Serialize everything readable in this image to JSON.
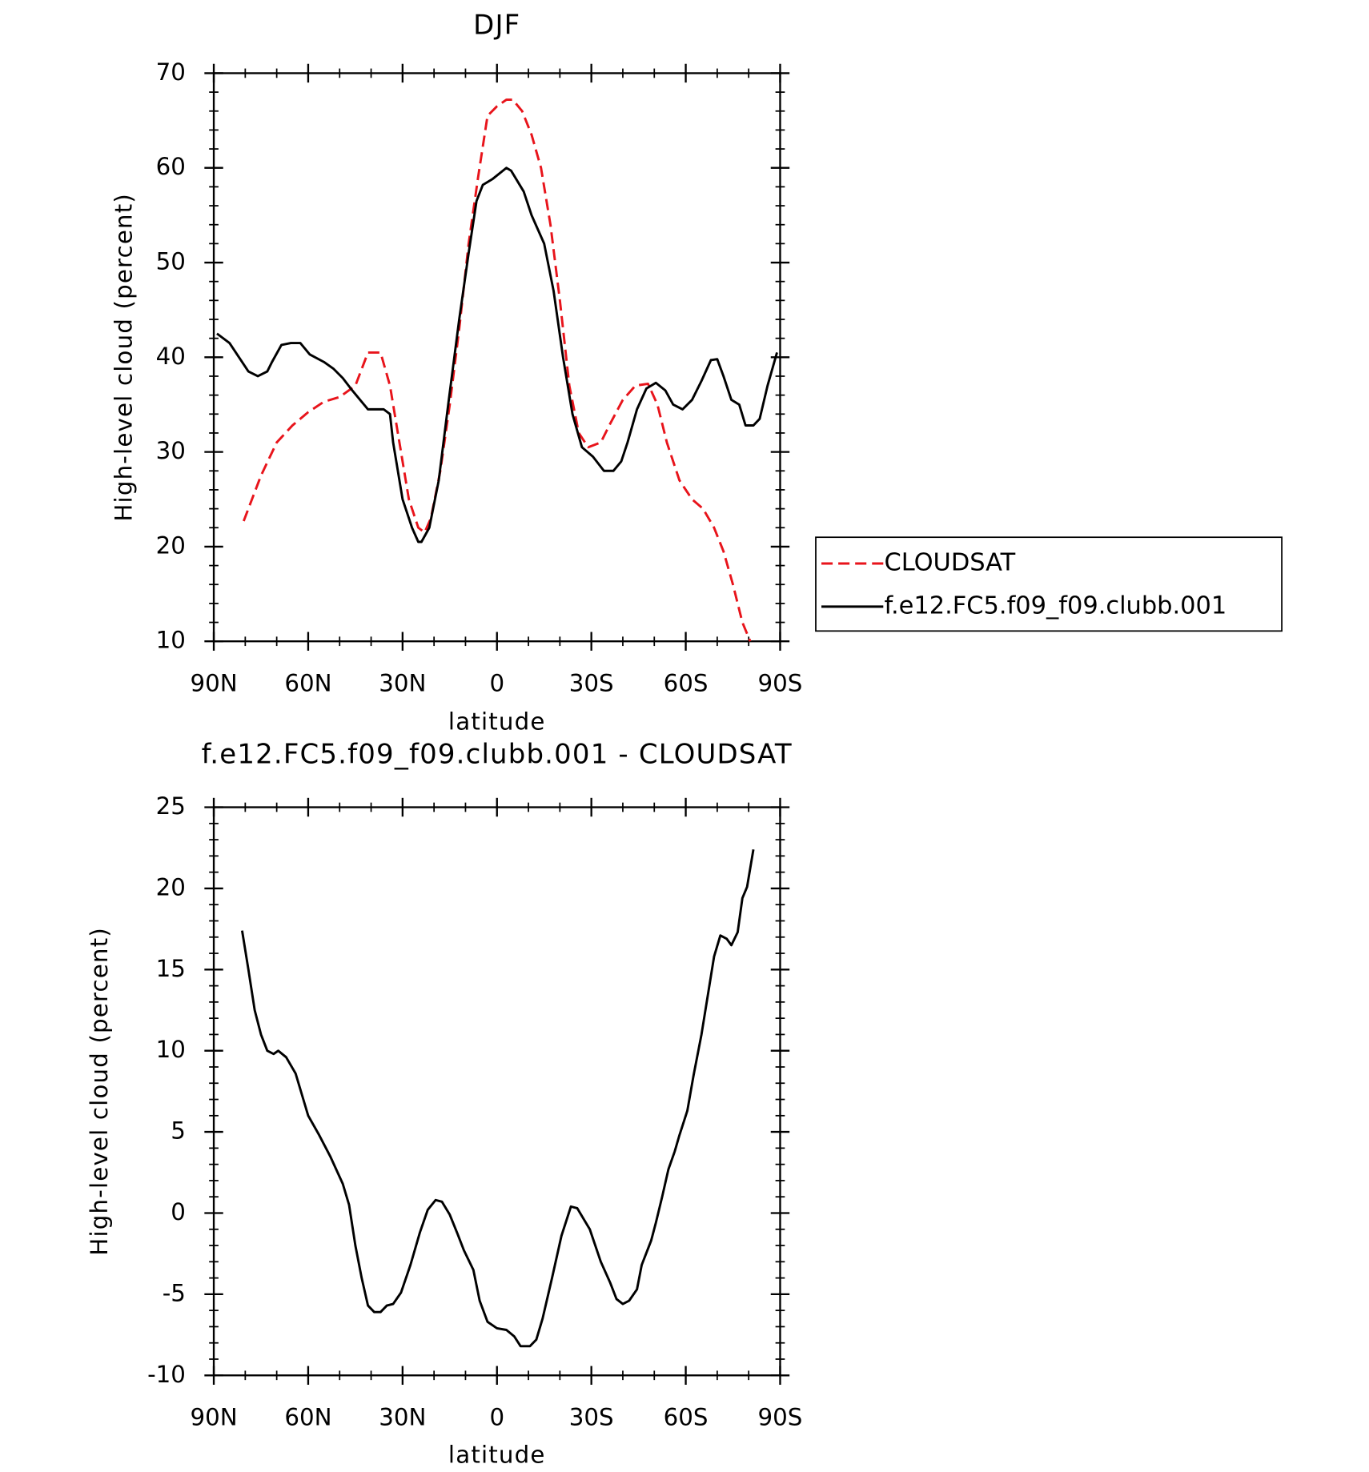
{
  "chart_data": [
    {
      "type": "line",
      "title": "DJF",
      "xlabel": "latitude",
      "ylabel": "High-level cloud (percent)",
      "xlim": [
        90,
        -90
      ],
      "xticks": [
        {
          "value": 90,
          "label": "90N"
        },
        {
          "value": 60,
          "label": "60N"
        },
        {
          "value": 30,
          "label": "30N"
        },
        0,
        {
          "value": -30,
          "label": "30S"
        },
        {
          "value": -60,
          "label": "60S"
        },
        {
          "value": -90,
          "label": "90S"
        }
      ],
      "ylim": [
        10,
        70
      ],
      "yticks": [
        10,
        20,
        30,
        40,
        50,
        60,
        70
      ],
      "legend": "right",
      "series": [
        {
          "name": "CLOUDSAT",
          "color": "#e8141b",
          "dash": "dashed",
          "x": [
            80.5,
            75,
            70,
            65,
            60,
            55,
            50,
            45,
            41,
            37,
            34,
            31,
            28,
            25,
            23,
            21,
            18,
            15,
            12,
            9,
            6,
            3,
            0,
            -3,
            -5,
            -8,
            -11,
            -14,
            -17,
            -20,
            -23,
            -26,
            -29,
            -33,
            -36,
            -40,
            -44,
            -48,
            -51,
            -54,
            -58,
            -62,
            -65.5,
            -69,
            -72,
            -75,
            -78,
            -80.5
          ],
          "values": [
            22.7,
            27.5,
            31,
            32.8,
            34.2,
            35.3,
            35.8,
            37,
            40.5,
            40.5,
            37,
            31,
            25,
            22,
            21.5,
            23,
            28,
            35,
            43,
            52,
            59,
            65.5,
            66.5,
            67.2,
            67.2,
            66,
            63.5,
            60,
            54,
            46,
            37,
            32,
            30.5,
            31,
            33,
            35.5,
            37,
            37.2,
            35,
            31,
            27,
            25,
            24,
            22,
            19.5,
            16,
            12,
            10
          ]
        },
        {
          "name": "f.e12.FC5.f09_f09.clubb.001",
          "color": "#000000",
          "dash": "solid",
          "x": [
            89,
            85,
            82,
            79,
            76,
            73,
            71.5,
            68.5,
            65.5,
            62.5,
            59.5,
            55,
            52,
            49,
            46,
            43,
            41,
            36,
            34,
            33,
            30,
            27,
            25,
            24,
            21.5,
            18.5,
            15.5,
            12,
            9,
            6.5,
            4.5,
            1.5,
            -3,
            -4.5,
            -8.5,
            -11,
            -15,
            -18,
            -21,
            -24,
            -27,
            -30.5,
            -34,
            -37,
            -39.5,
            -41.5,
            -44.5,
            -47.5,
            -50.5,
            -53.5,
            -56,
            -59,
            -62,
            -65,
            -68,
            -70,
            -72,
            -74.5,
            -77,
            -79,
            -81.5,
            -83.5,
            -86,
            -89
          ],
          "values": [
            42.5,
            41.5,
            40,
            38.5,
            38,
            38.5,
            39.5,
            41.3,
            41.5,
            41.5,
            40.3,
            39.5,
            38.8,
            37.8,
            36.5,
            35.3,
            34.5,
            34.5,
            34,
            31,
            25,
            22,
            20.5,
            20.5,
            22,
            27,
            35,
            44,
            51,
            56.5,
            58.2,
            58.8,
            60,
            59.7,
            57.5,
            55,
            52,
            47,
            40,
            34,
            30.5,
            29.5,
            28,
            28,
            29,
            31,
            34.5,
            36.7,
            37.3,
            36.5,
            35,
            34.5,
            35.5,
            37.5,
            39.7,
            39.8,
            38,
            35.5,
            35,
            32.8,
            32.8,
            33.5,
            37,
            40.5
          ]
        }
      ]
    },
    {
      "type": "line",
      "title": "f.e12.FC5.f09_f09.clubb.001 - CLOUDSAT",
      "xlabel": "latitude",
      "ylabel": "High-level cloud (percent)",
      "xlim": [
        90,
        -90
      ],
      "xticks": [
        {
          "value": 90,
          "label": "90N"
        },
        {
          "value": 60,
          "label": "60N"
        },
        {
          "value": 30,
          "label": "30N"
        },
        0,
        {
          "value": -30,
          "label": "30S"
        },
        {
          "value": -60,
          "label": "60S"
        },
        {
          "value": -90,
          "label": "90S"
        }
      ],
      "ylim": [
        -10,
        25
      ],
      "yticks": [
        -10,
        -5,
        0,
        5,
        10,
        15,
        20,
        25
      ],
      "series": [
        {
          "color": "#000000",
          "dash": "solid",
          "x": [
            81,
            79,
            77,
            75,
            73,
            71,
            69.5,
            67,
            64,
            60,
            56.5,
            53,
            49,
            47,
            45,
            43,
            41,
            39,
            37,
            35,
            33,
            30.5,
            27.5,
            24.5,
            22,
            19.5,
            17.5,
            15,
            12.5,
            10.5,
            7.5,
            5.5,
            3,
            0,
            -3,
            -5.5,
            -7.5,
            -10.5,
            -12.5,
            -14.5,
            -17.5,
            -20.5,
            -23.5,
            -25.5,
            -29.5,
            -33,
            -36,
            -38,
            -40,
            -42,
            -44.5,
            -46,
            -49,
            -50.5,
            -52.5,
            -54.5,
            -56.5,
            -58,
            -60.5,
            -62.5,
            -65,
            -67.5,
            -69,
            -71,
            -73,
            -74.5,
            -76.5,
            -78,
            -79.5,
            -81.5
          ],
          "values": [
            17.4,
            15,
            12.5,
            11,
            10,
            9.8,
            10,
            9.6,
            8.6,
            6,
            4.8,
            3.5,
            1.8,
            0.5,
            -2,
            -4,
            -5.7,
            -6.1,
            -6.1,
            -5.7,
            -5.6,
            -4.9,
            -3.2,
            -1.2,
            0.2,
            0.8,
            0.7,
            -0.1,
            -1.3,
            -2.3,
            -3.5,
            -5.4,
            -6.7,
            -7.1,
            -7.2,
            -7.6,
            -8.2,
            -8.2,
            -7.8,
            -6.5,
            -4,
            -1.4,
            0.4,
            0.3,
            -1,
            -3,
            -4.3,
            -5.3,
            -5.6,
            -5.4,
            -4.7,
            -3.2,
            -1.7,
            -0.6,
            1,
            2.7,
            3.8,
            4.8,
            6.3,
            8.5,
            11,
            14,
            15.8,
            17.1,
            16.9,
            16.5,
            17.3,
            19.4,
            20.1,
            22.4
          ]
        }
      ]
    }
  ]
}
